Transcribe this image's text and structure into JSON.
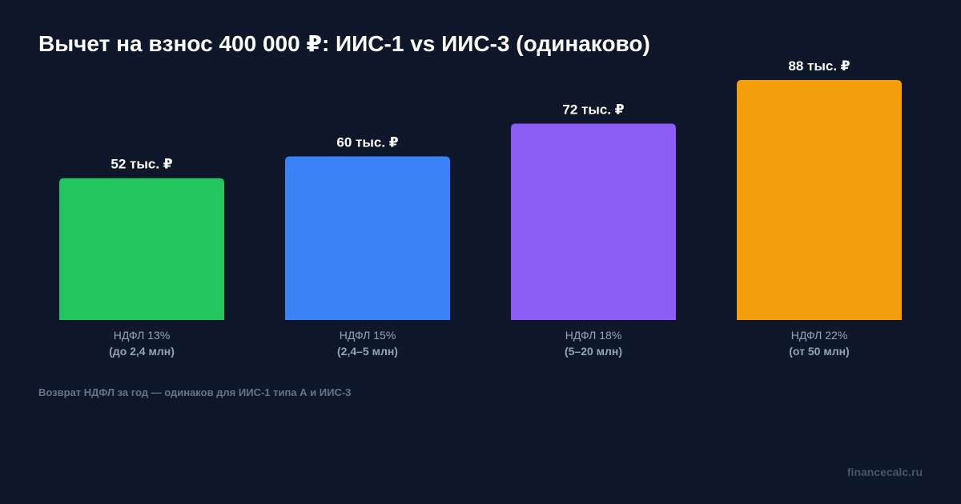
{
  "chart_data": {
    "type": "bar",
    "title": "Вычет на взнос 400 000 ₽: ИИС-1 vs ИИС-3 (одинаково)",
    "categories": [
      [
        "НДФЛ 13%",
        "(до 2,4 млн)"
      ],
      [
        "НДФЛ 15%",
        "(2,4–5 млн)"
      ],
      [
        "НДФЛ 18%",
        "(5–20 млн)"
      ],
      [
        "НДФЛ 22%",
        "(от 50 млн)"
      ]
    ],
    "values": [
      52,
      60,
      72,
      88
    ],
    "value_labels": [
      "52 тыс. ₽",
      "60 тыс. ₽",
      "72 тыс. ₽",
      "88 тыс. ₽"
    ],
    "colors": [
      "#22c55e",
      "#3b82f6",
      "#8b5cf6",
      "#f59e0b"
    ],
    "ylim": [
      0,
      88
    ],
    "xlabel": "",
    "ylabel": "",
    "grid": false,
    "legend": "none",
    "footnote": "Возврат НДФЛ за год — одинаков для ИИС-1 типа А и ИИС-3"
  },
  "watermark": "financecalc.ru",
  "background_color": "#0f172a"
}
